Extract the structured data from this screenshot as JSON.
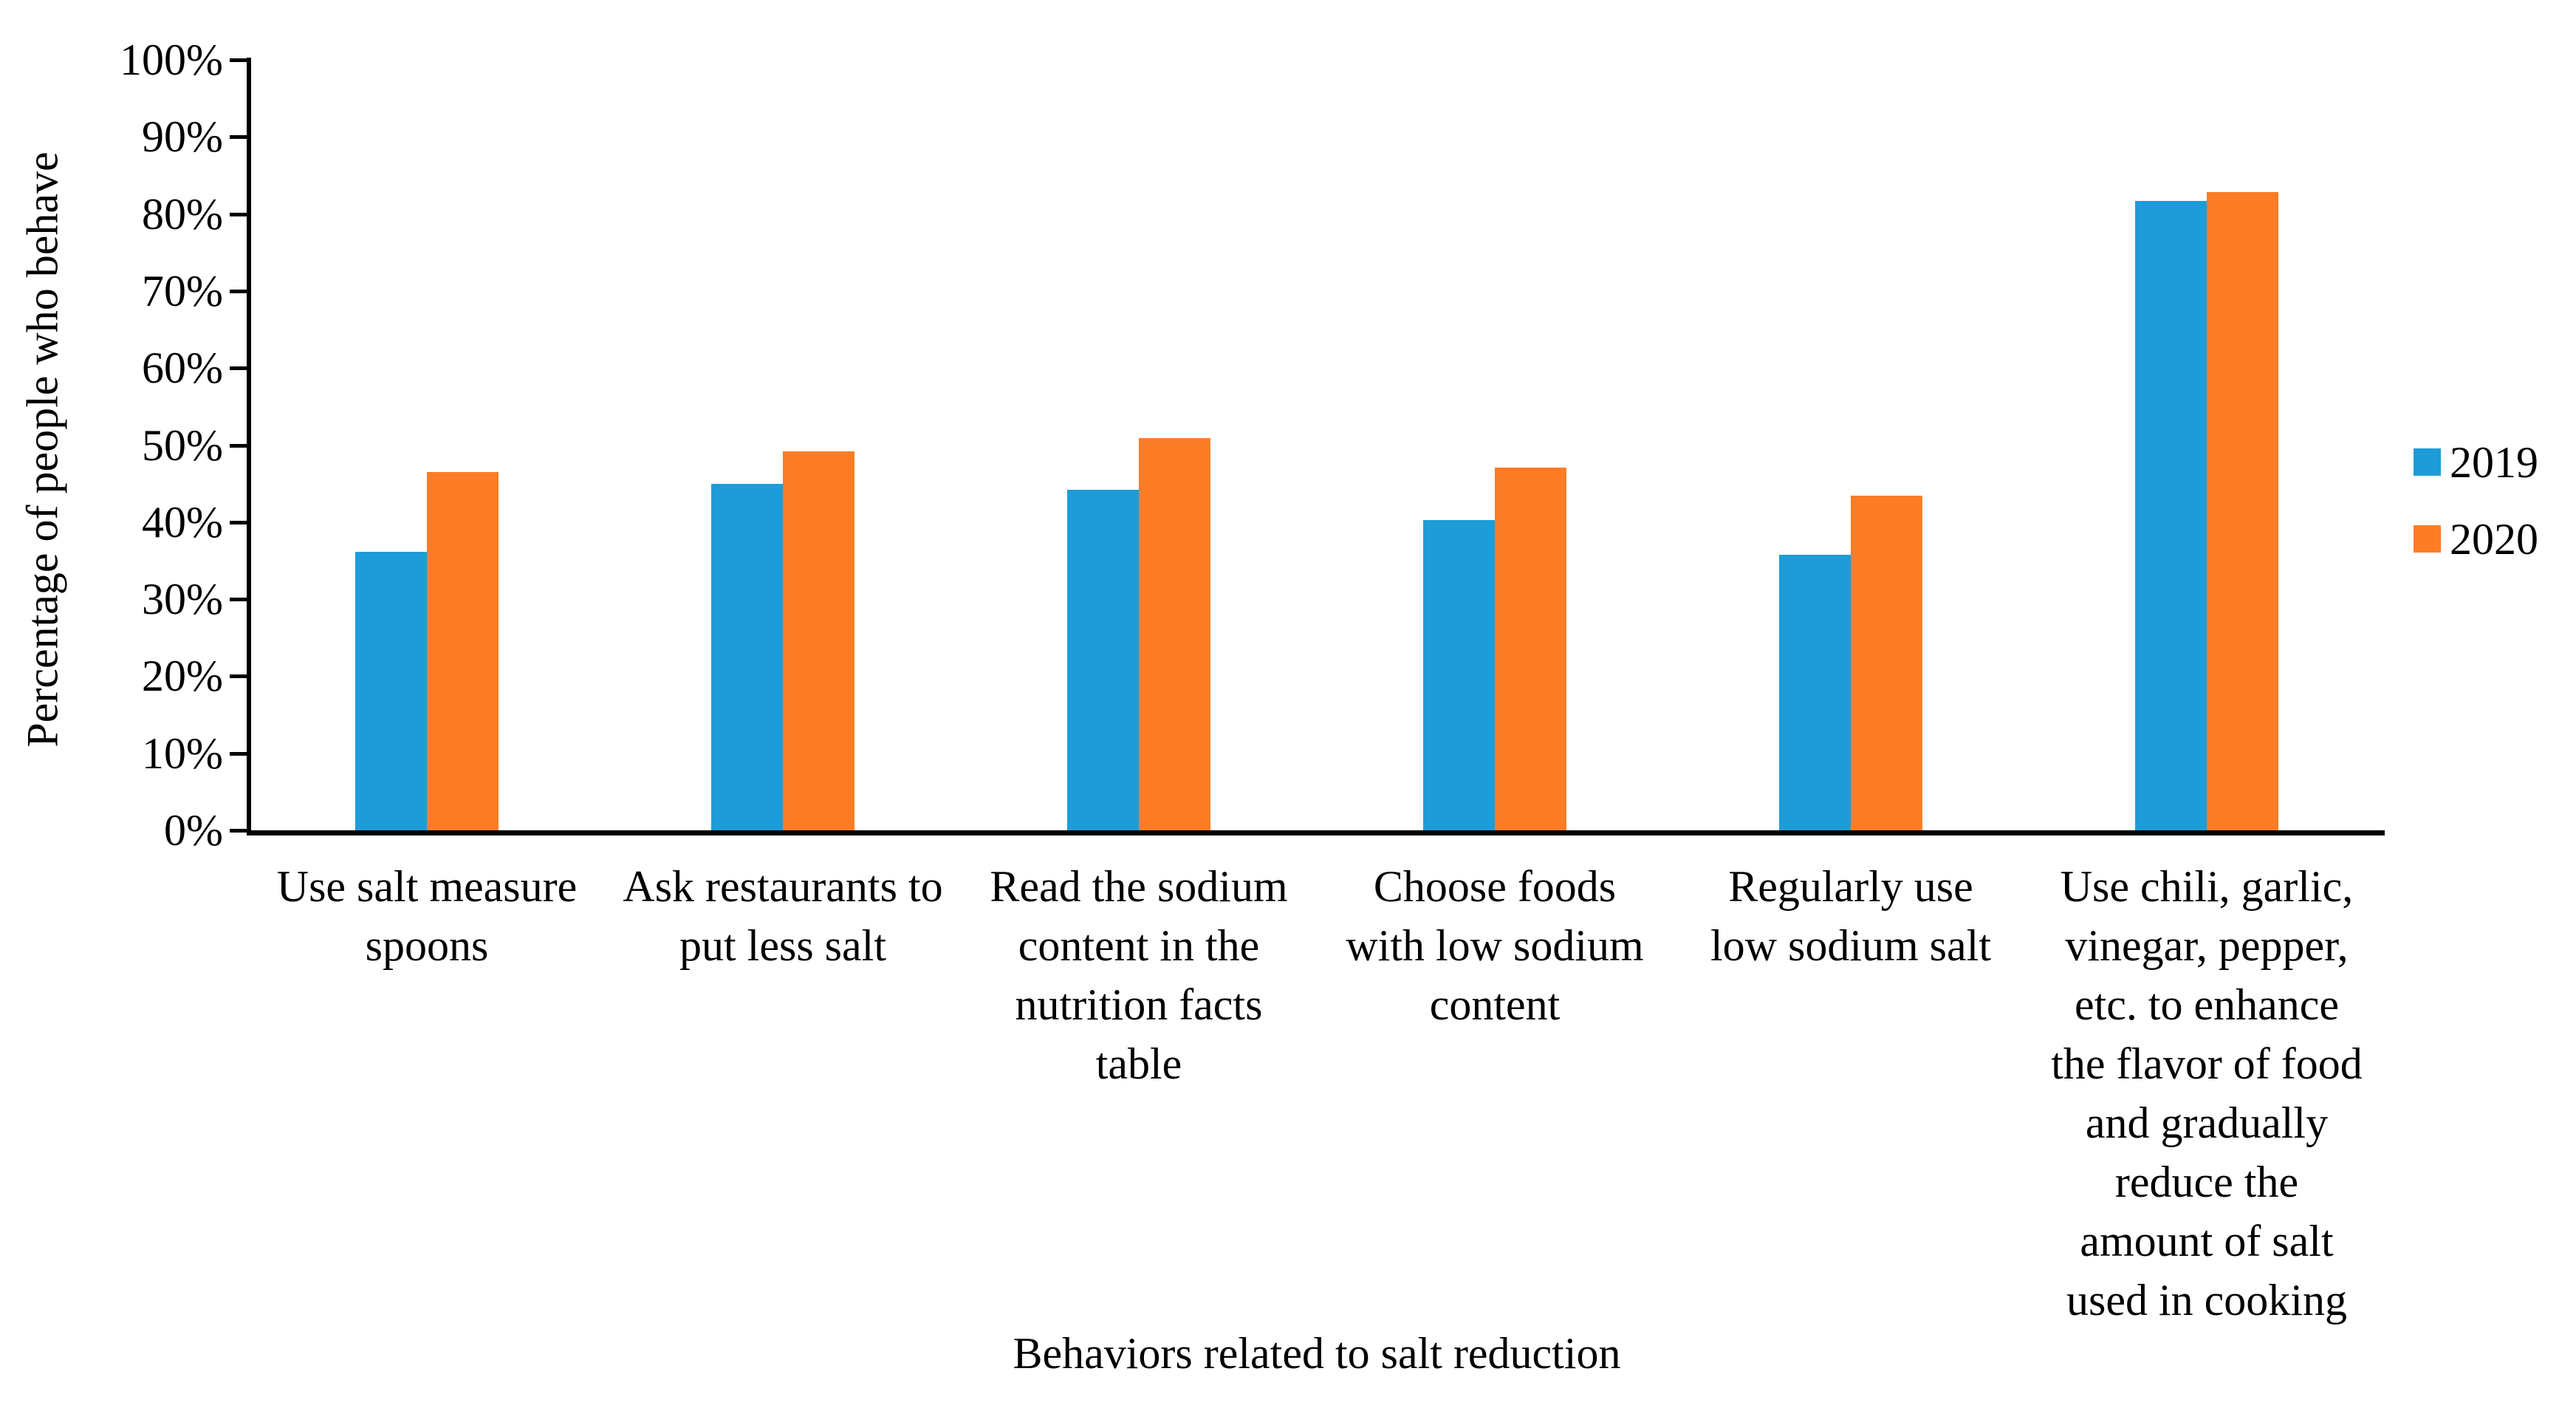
{
  "chart_data": {
    "type": "bar",
    "title": "",
    "xlabel": "Behaviors related to salt reduction",
    "ylabel": "Percentage of people who behave",
    "ylim": [
      0,
      100
    ],
    "ytick_step": 10,
    "ytick_labels": [
      "0%",
      "10%",
      "20%",
      "30%",
      "40%",
      "50%",
      "60%",
      "70%",
      "80%",
      "90%",
      "100%"
    ],
    "grid": false,
    "legend_position": "right",
    "background_color": "#ffffff",
    "axis_color": "#000000",
    "categories": [
      "Use salt measure spoons",
      "Ask restaurants to put less salt",
      "Read the sodium content in the nutrition facts table",
      "Choose foods with low sodium content",
      "Regularly use low sodium salt",
      "Use chili, garlic, vinegar, pepper, etc. to enhance the flavor of food and gradually reduce the amount of salt used in cooking"
    ],
    "category_lines": [
      [
        "Use salt measure",
        "spoons"
      ],
      [
        "Ask restaurants to",
        "put less salt"
      ],
      [
        "Read the sodium",
        "content in the",
        "nutrition facts",
        "table"
      ],
      [
        "Choose foods",
        "with low sodium",
        "content"
      ],
      [
        "Regularly use",
        "low sodium salt"
      ],
      [
        "Use chili, garlic,",
        "vinegar, pepper,",
        "etc. to enhance",
        "the flavor of food",
        "and gradually",
        "reduce the",
        "amount of salt",
        "used in cooking"
      ]
    ],
    "series": [
      {
        "name": "2019",
        "color": "#1e9cd8",
        "values": [
          36.1,
          45.0,
          44.2,
          40.3,
          35.8,
          81.7
        ]
      },
      {
        "name": "2020",
        "color": "#fc7d26",
        "values": [
          46.5,
          49.2,
          50.9,
          47.1,
          43.4,
          82.8
        ]
      }
    ]
  }
}
